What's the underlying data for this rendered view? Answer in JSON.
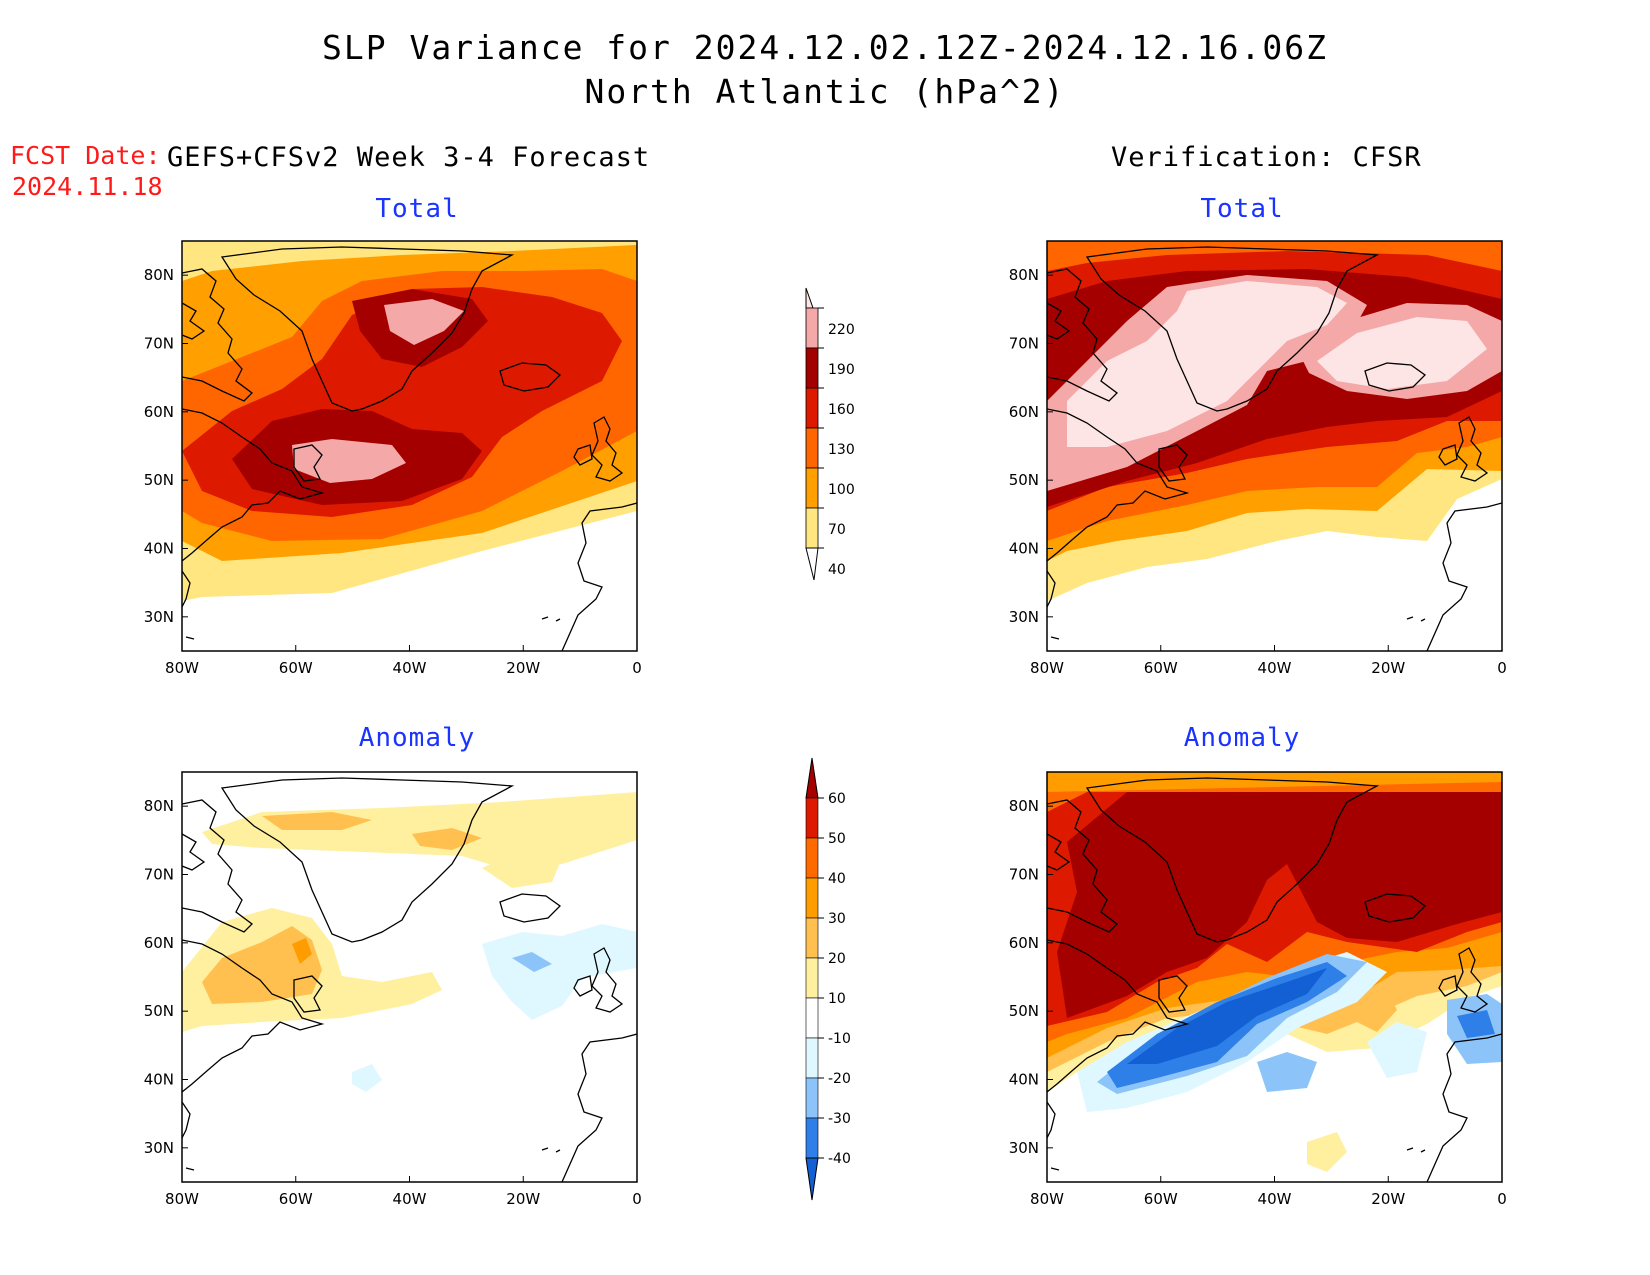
{
  "title_line1": "SLP Variance for 2024.12.02.12Z-2024.12.16.06Z",
  "title_line2": "North Atlantic (hPa^2)",
  "fcst_label": "FCST Date:",
  "fcst_date": "2024.11.18",
  "left_column_title": "GEFS+CFSv2 Week 3-4 Forecast",
  "right_column_title": "Verification: CFSR",
  "panels": {
    "forecast_total": {
      "title": "Total"
    },
    "verification_total": {
      "title": "Total"
    },
    "forecast_anomaly": {
      "title": "Anomaly"
    },
    "verification_anomaly": {
      "title": "Anomaly"
    }
  },
  "axes": {
    "lon_ticks": [
      "80W",
      "60W",
      "40W",
      "20W",
      "0"
    ],
    "lat_ticks": [
      "80N",
      "70N",
      "60N",
      "50N",
      "40N",
      "30N"
    ],
    "lon_range": [
      -80,
      0
    ],
    "lat_range": [
      25,
      85
    ]
  },
  "colorbars": {
    "total": {
      "levels": [
        "40",
        "70",
        "100",
        "130",
        "160",
        "190",
        "220"
      ],
      "colors": [
        "#ffffff",
        "#ffe680",
        "#ffa000",
        "#ff6600",
        "#dd1a00",
        "#a50000",
        "#f4a8a8",
        "#fde5e5"
      ]
    },
    "anomaly": {
      "levels": [
        "-40",
        "-30",
        "-20",
        "-10",
        "10",
        "20",
        "30",
        "40",
        "50",
        "60"
      ],
      "colors": [
        "#1260d4",
        "#2e7fe8",
        "#8cc4fa",
        "#dff8ff",
        "#ffffff",
        "#fff0a0",
        "#ffc050",
        "#ff9d00",
        "#ff6a00",
        "#dd1a00",
        "#a50000"
      ]
    }
  },
  "chart_data": {
    "type": "heatmap",
    "variable": "SLP Variance",
    "units": "hPa^2",
    "region": "North Atlantic",
    "lon_range": [
      -80,
      0
    ],
    "lat_range": [
      25,
      85
    ],
    "panels": [
      {
        "name": "GEFS+CFSv2 Week 3-4 Forecast",
        "field": "Total",
        "features": [
          {
            "desc": "max center",
            "lon": -42,
            "lat": 74,
            "value_range": "190-220"
          },
          {
            "desc": "max center",
            "lon": -50,
            "lat": 52,
            "value_range": "190-220"
          },
          {
            "desc": "high band",
            "lon": -30,
            "lat": 62,
            "value_range": "130-160"
          }
        ]
      },
      {
        "name": "Verification: CFSR",
        "field": "Total",
        "features": [
          {
            "desc": "broad max",
            "lon": -50,
            "lat": 65,
            "value_range": ">220"
          },
          {
            "desc": "max",
            "lon": -10,
            "lat": 67,
            "value_range": ">220"
          }
        ]
      },
      {
        "name": "GEFS+CFSv2 Week 3-4 Forecast",
        "field": "Anomaly",
        "features": [
          {
            "desc": "positive",
            "lon": -60,
            "lat": 56,
            "value_range": "20-40"
          },
          {
            "desc": "positive",
            "lon": -32,
            "lat": 78,
            "value_range": "20-30"
          },
          {
            "desc": "negative",
            "lon": -20,
            "lat": 58,
            "value_range": "-20 to -10"
          }
        ]
      },
      {
        "name": "Verification: CFSR",
        "field": "Anomaly",
        "features": [
          {
            "desc": "strong positive",
            "lon": -40,
            "lat": 75,
            "value_range": ">60"
          },
          {
            "desc": "strong negative",
            "lon": -50,
            "lat": 45,
            "value_range": "<-40"
          },
          {
            "desc": "negative",
            "lon": -5,
            "lat": 47,
            "value_range": "-40 to -30"
          }
        ]
      }
    ]
  }
}
